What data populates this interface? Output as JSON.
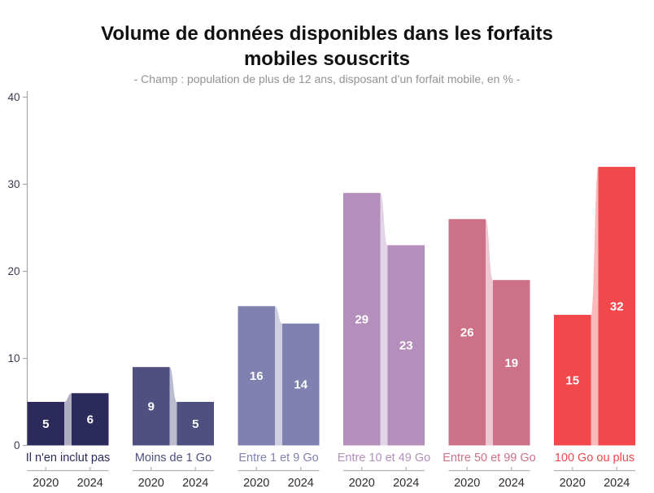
{
  "header": {
    "title": "Volume de données disponibles dans les forfaits mobiles souscrits",
    "subtitle": "- Champ : population de plus de 12 ans, disposant d’un forfait mobile, en % -"
  },
  "chart_data": {
    "type": "bar",
    "title": "Volume de données disponibles dans les forfaits mobiles souscrits",
    "subtitle": "- Champ : population de plus de 12 ans, disposant d’un forfait mobile, en % -",
    "unit": "%",
    "categories": [
      "Il n'en inclut pas",
      "Moins de 1 Go",
      "Entre 1 et 9 Go",
      "Entre 10 et 49 Go",
      "Entre 50 et 99 Go",
      "100 Go ou plus"
    ],
    "colors": [
      "#2b2a5a",
      "#4f4f80",
      "#8181b1",
      "#b48fbc",
      "#cd7189",
      "#f2474b"
    ],
    "series": [
      {
        "name": "2020",
        "values": [
          5,
          9,
          16,
          29,
          26,
          15
        ]
      },
      {
        "name": "2024",
        "values": [
          6,
          5,
          14,
          23,
          19,
          32
        ]
      }
    ],
    "ylim": [
      0,
      40
    ],
    "yticks": [
      0,
      10,
      20,
      30,
      40
    ],
    "grid": false,
    "legend": "none",
    "value_labels": "white bold, centered inside each bar",
    "connector_style": "faded ribbon (same hue, ~38% opacity) linking 2020 bar top to 2024 bar top",
    "axis_color": "#a8a8a8",
    "group_axis_color": "#b3b3b3",
    "year_label_color": "#2d2d2d"
  }
}
